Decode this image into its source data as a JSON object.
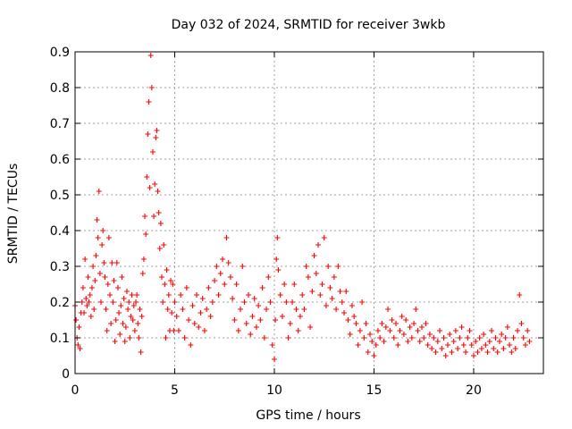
{
  "chart_data": {
    "type": "scatter",
    "title": "Day 032 of 2024, SRMTID for receiver 3wkb",
    "xlabel": "GPS time / hours",
    "ylabel": "SRMTID / TECUs",
    "xlim": [
      0,
      23.5
    ],
    "ylim": [
      0,
      0.9
    ],
    "xticks": [
      0,
      5,
      10,
      15,
      20
    ],
    "xtick_labels": [
      "0",
      "5",
      "10",
      "15",
      "20"
    ],
    "yticks": [
      0,
      0.1,
      0.2,
      0.3,
      0.4,
      0.5,
      0.6,
      0.7,
      0.8,
      0.9
    ],
    "ytick_labels": [
      "0",
      "0.1",
      "0.2",
      "0.3",
      "0.4",
      "0.5",
      "0.6",
      "0.7",
      "0.8",
      "0.9"
    ],
    "grid": true,
    "marker": "+",
    "color": "#ff0000",
    "series": [
      {
        "name": "SRMTID",
        "points": [
          [
            0.0,
            0.19
          ],
          [
            0.05,
            0.15
          ],
          [
            0.1,
            0.1
          ],
          [
            0.15,
            0.08
          ],
          [
            0.2,
            0.13
          ],
          [
            0.25,
            0.07
          ],
          [
            0.3,
            0.17
          ],
          [
            0.35,
            0.2
          ],
          [
            0.4,
            0.24
          ],
          [
            0.45,
            0.17
          ],
          [
            0.5,
            0.32
          ],
          [
            0.55,
            0.21
          ],
          [
            0.6,
            0.19
          ],
          [
            0.65,
            0.27
          ],
          [
            0.7,
            0.2
          ],
          [
            0.75,
            0.22
          ],
          [
            0.8,
            0.16
          ],
          [
            0.85,
            0.24
          ],
          [
            0.9,
            0.3
          ],
          [
            0.95,
            0.18
          ],
          [
            1.0,
            0.26
          ],
          [
            1.05,
            0.33
          ],
          [
            1.1,
            0.43
          ],
          [
            1.15,
            0.38
          ],
          [
            1.2,
            0.51
          ],
          [
            1.25,
            0.28
          ],
          [
            1.3,
            0.2
          ],
          [
            1.35,
            0.36
          ],
          [
            1.4,
            0.4
          ],
          [
            1.45,
            0.31
          ],
          [
            1.5,
            0.27
          ],
          [
            1.55,
            0.18
          ],
          [
            1.6,
            0.12
          ],
          [
            1.65,
            0.25
          ],
          [
            1.7,
            0.38
          ],
          [
            1.75,
            0.22
          ],
          [
            1.8,
            0.14
          ],
          [
            1.85,
            0.31
          ],
          [
            1.9,
            0.2
          ],
          [
            1.95,
            0.26
          ],
          [
            2.0,
            0.09
          ],
          [
            2.05,
            0.15
          ],
          [
            2.1,
            0.31
          ],
          [
            2.15,
            0.24
          ],
          [
            2.2,
            0.17
          ],
          [
            2.25,
            0.11
          ],
          [
            2.3,
            0.19
          ],
          [
            2.35,
            0.27
          ],
          [
            2.4,
            0.14
          ],
          [
            2.45,
            0.21
          ],
          [
            2.5,
            0.09
          ],
          [
            2.55,
            0.13
          ],
          [
            2.6,
            0.23
          ],
          [
            2.65,
            0.18
          ],
          [
            2.7,
            0.2
          ],
          [
            2.75,
            0.1
          ],
          [
            2.8,
            0.16
          ],
          [
            2.85,
            0.22
          ],
          [
            2.9,
            0.15
          ],
          [
            2.95,
            0.19
          ],
          [
            3.0,
            0.12
          ],
          [
            3.05,
            0.2
          ],
          [
            3.1,
            0.22
          ],
          [
            3.15,
            0.14
          ],
          [
            3.2,
            0.1
          ],
          [
            3.25,
            0.18
          ],
          [
            3.3,
            0.06
          ],
          [
            3.35,
            0.16
          ],
          [
            3.4,
            0.28
          ],
          [
            3.45,
            0.32
          ],
          [
            3.5,
            0.44
          ],
          [
            3.55,
            0.39
          ],
          [
            3.6,
            0.55
          ],
          [
            3.65,
            0.67
          ],
          [
            3.7,
            0.76
          ],
          [
            3.75,
            0.52
          ],
          [
            3.8,
            0.89
          ],
          [
            3.85,
            0.8
          ],
          [
            3.9,
            0.62
          ],
          [
            3.95,
            0.44
          ],
          [
            4.0,
            0.53
          ],
          [
            4.05,
            0.66
          ],
          [
            4.1,
            0.68
          ],
          [
            4.15,
            0.51
          ],
          [
            4.2,
            0.45
          ],
          [
            4.25,
            0.35
          ],
          [
            4.3,
            0.42
          ],
          [
            4.35,
            0.27
          ],
          [
            4.4,
            0.2
          ],
          [
            4.45,
            0.36
          ],
          [
            4.5,
            0.25
          ],
          [
            4.55,
            0.1
          ],
          [
            4.6,
            0.29
          ],
          [
            4.65,
            0.18
          ],
          [
            4.7,
            0.22
          ],
          [
            4.75,
            0.12
          ],
          [
            4.8,
            0.26
          ],
          [
            4.85,
            0.17
          ],
          [
            4.9,
            0.25
          ],
          [
            4.95,
            0.12
          ],
          [
            5.0,
            0.2
          ],
          [
            5.1,
            0.16
          ],
          [
            5.2,
            0.12
          ],
          [
            5.3,
            0.22
          ],
          [
            5.4,
            0.18
          ],
          [
            5.5,
            0.1
          ],
          [
            5.6,
            0.24
          ],
          [
            5.7,
            0.15
          ],
          [
            5.8,
            0.08
          ],
          [
            5.9,
            0.19
          ],
          [
            6.0,
            0.14
          ],
          [
            6.1,
            0.22
          ],
          [
            6.2,
            0.13
          ],
          [
            6.3,
            0.17
          ],
          [
            6.4,
            0.21
          ],
          [
            6.5,
            0.12
          ],
          [
            6.6,
            0.18
          ],
          [
            6.7,
            0.24
          ],
          [
            6.8,
            0.16
          ],
          [
            6.9,
            0.2
          ],
          [
            7.0,
            0.26
          ],
          [
            7.1,
            0.3
          ],
          [
            7.2,
            0.22
          ],
          [
            7.3,
            0.28
          ],
          [
            7.4,
            0.32
          ],
          [
            7.5,
            0.25
          ],
          [
            7.6,
            0.38
          ],
          [
            7.7,
            0.31
          ],
          [
            7.8,
            0.27
          ],
          [
            7.9,
            0.21
          ],
          [
            8.0,
            0.15
          ],
          [
            8.1,
            0.25
          ],
          [
            8.2,
            0.12
          ],
          [
            8.3,
            0.18
          ],
          [
            8.4,
            0.3
          ],
          [
            8.5,
            0.2
          ],
          [
            8.6,
            0.14
          ],
          [
            8.7,
            0.22
          ],
          [
            8.8,
            0.11
          ],
          [
            8.9,
            0.16
          ],
          [
            9.0,
            0.21
          ],
          [
            9.1,
            0.13
          ],
          [
            9.2,
            0.19
          ],
          [
            9.3,
            0.15
          ],
          [
            9.4,
            0.24
          ],
          [
            9.5,
            0.1
          ],
          [
            9.6,
            0.18
          ],
          [
            9.7,
            0.27
          ],
          [
            9.8,
            0.2
          ],
          [
            9.9,
            0.08
          ],
          [
            10.0,
            0.04
          ],
          [
            10.05,
            0.15
          ],
          [
            10.1,
            0.32
          ],
          [
            10.15,
            0.38
          ],
          [
            10.2,
            0.29
          ],
          [
            10.3,
            0.22
          ],
          [
            10.4,
            0.16
          ],
          [
            10.5,
            0.25
          ],
          [
            10.6,
            0.2
          ],
          [
            10.7,
            0.1
          ],
          [
            10.8,
            0.14
          ],
          [
            10.9,
            0.2
          ],
          [
            11.0,
            0.25
          ],
          [
            11.1,
            0.18
          ],
          [
            11.2,
            0.12
          ],
          [
            11.3,
            0.16
          ],
          [
            11.4,
            0.22
          ],
          [
            11.5,
            0.18
          ],
          [
            11.6,
            0.3
          ],
          [
            11.7,
            0.27
          ],
          [
            11.8,
            0.13
          ],
          [
            11.9,
            0.23
          ],
          [
            12.0,
            0.33
          ],
          [
            12.1,
            0.28
          ],
          [
            12.2,
            0.36
          ],
          [
            12.3,
            0.22
          ],
          [
            12.4,
            0.25
          ],
          [
            12.5,
            0.38
          ],
          [
            12.6,
            0.19
          ],
          [
            12.7,
            0.3
          ],
          [
            12.8,
            0.24
          ],
          [
            12.9,
            0.21
          ],
          [
            13.0,
            0.27
          ],
          [
            13.1,
            0.18
          ],
          [
            13.2,
            0.3
          ],
          [
            13.3,
            0.23
          ],
          [
            13.4,
            0.2
          ],
          [
            13.5,
            0.17
          ],
          [
            13.6,
            0.23
          ],
          [
            13.7,
            0.15
          ],
          [
            13.8,
            0.11
          ],
          [
            13.9,
            0.19
          ],
          [
            14.0,
            0.16
          ],
          [
            14.1,
            0.14
          ],
          [
            14.2,
            0.08
          ],
          [
            14.3,
            0.12
          ],
          [
            14.4,
            0.2
          ],
          [
            14.5,
            0.1
          ],
          [
            14.6,
            0.14
          ],
          [
            14.7,
            0.06
          ],
          [
            14.8,
            0.11
          ],
          [
            14.9,
            0.09
          ],
          [
            15.0,
            0.05
          ],
          [
            15.1,
            0.08
          ],
          [
            15.2,
            0.12
          ],
          [
            15.3,
            0.1
          ],
          [
            15.4,
            0.14
          ],
          [
            15.5,
            0.09
          ],
          [
            15.6,
            0.13
          ],
          [
            15.7,
            0.18
          ],
          [
            15.8,
            0.12
          ],
          [
            15.9,
            0.15
          ],
          [
            16.0,
            0.1
          ],
          [
            16.1,
            0.14
          ],
          [
            16.2,
            0.08
          ],
          [
            16.3,
            0.12
          ],
          [
            16.4,
            0.16
          ],
          [
            16.5,
            0.11
          ],
          [
            16.6,
            0.15
          ],
          [
            16.7,
            0.09
          ],
          [
            16.8,
            0.13
          ],
          [
            16.9,
            0.1
          ],
          [
            17.0,
            0.14
          ],
          [
            17.1,
            0.18
          ],
          [
            17.2,
            0.12
          ],
          [
            17.3,
            0.09
          ],
          [
            17.4,
            0.13
          ],
          [
            17.5,
            0.1
          ],
          [
            17.6,
            0.14
          ],
          [
            17.7,
            0.08
          ],
          [
            17.8,
            0.11
          ],
          [
            17.9,
            0.07
          ],
          [
            18.0,
            0.1
          ],
          [
            18.1,
            0.06
          ],
          [
            18.2,
            0.09
          ],
          [
            18.3,
            0.12
          ],
          [
            18.4,
            0.07
          ],
          [
            18.5,
            0.1
          ],
          [
            18.6,
            0.05
          ],
          [
            18.7,
            0.08
          ],
          [
            18.8,
            0.11
          ],
          [
            18.9,
            0.06
          ],
          [
            19.0,
            0.09
          ],
          [
            19.1,
            0.12
          ],
          [
            19.2,
            0.07
          ],
          [
            19.3,
            0.1
          ],
          [
            19.4,
            0.13
          ],
          [
            19.5,
            0.08
          ],
          [
            19.6,
            0.06
          ],
          [
            19.7,
            0.1
          ],
          [
            19.8,
            0.12
          ],
          [
            19.9,
            0.08
          ],
          [
            20.0,
            0.05
          ],
          [
            20.1,
            0.09
          ],
          [
            20.2,
            0.06
          ],
          [
            20.3,
            0.1
          ],
          [
            20.4,
            0.07
          ],
          [
            20.5,
            0.11
          ],
          [
            20.6,
            0.08
          ],
          [
            20.7,
            0.06
          ],
          [
            20.8,
            0.09
          ],
          [
            20.9,
            0.12
          ],
          [
            21.0,
            0.07
          ],
          [
            21.1,
            0.1
          ],
          [
            21.2,
            0.06
          ],
          [
            21.3,
            0.09
          ],
          [
            21.4,
            0.11
          ],
          [
            21.5,
            0.07
          ],
          [
            21.6,
            0.1
          ],
          [
            21.7,
            0.13
          ],
          [
            21.8,
            0.08
          ],
          [
            21.9,
            0.06
          ],
          [
            22.0,
            0.1
          ],
          [
            22.1,
            0.07
          ],
          [
            22.2,
            0.12
          ],
          [
            22.3,
            0.22
          ],
          [
            22.4,
            0.14
          ],
          [
            22.5,
            0.1
          ],
          [
            22.6,
            0.08
          ],
          [
            22.7,
            0.12
          ],
          [
            22.8,
            0.09
          ]
        ]
      }
    ]
  }
}
